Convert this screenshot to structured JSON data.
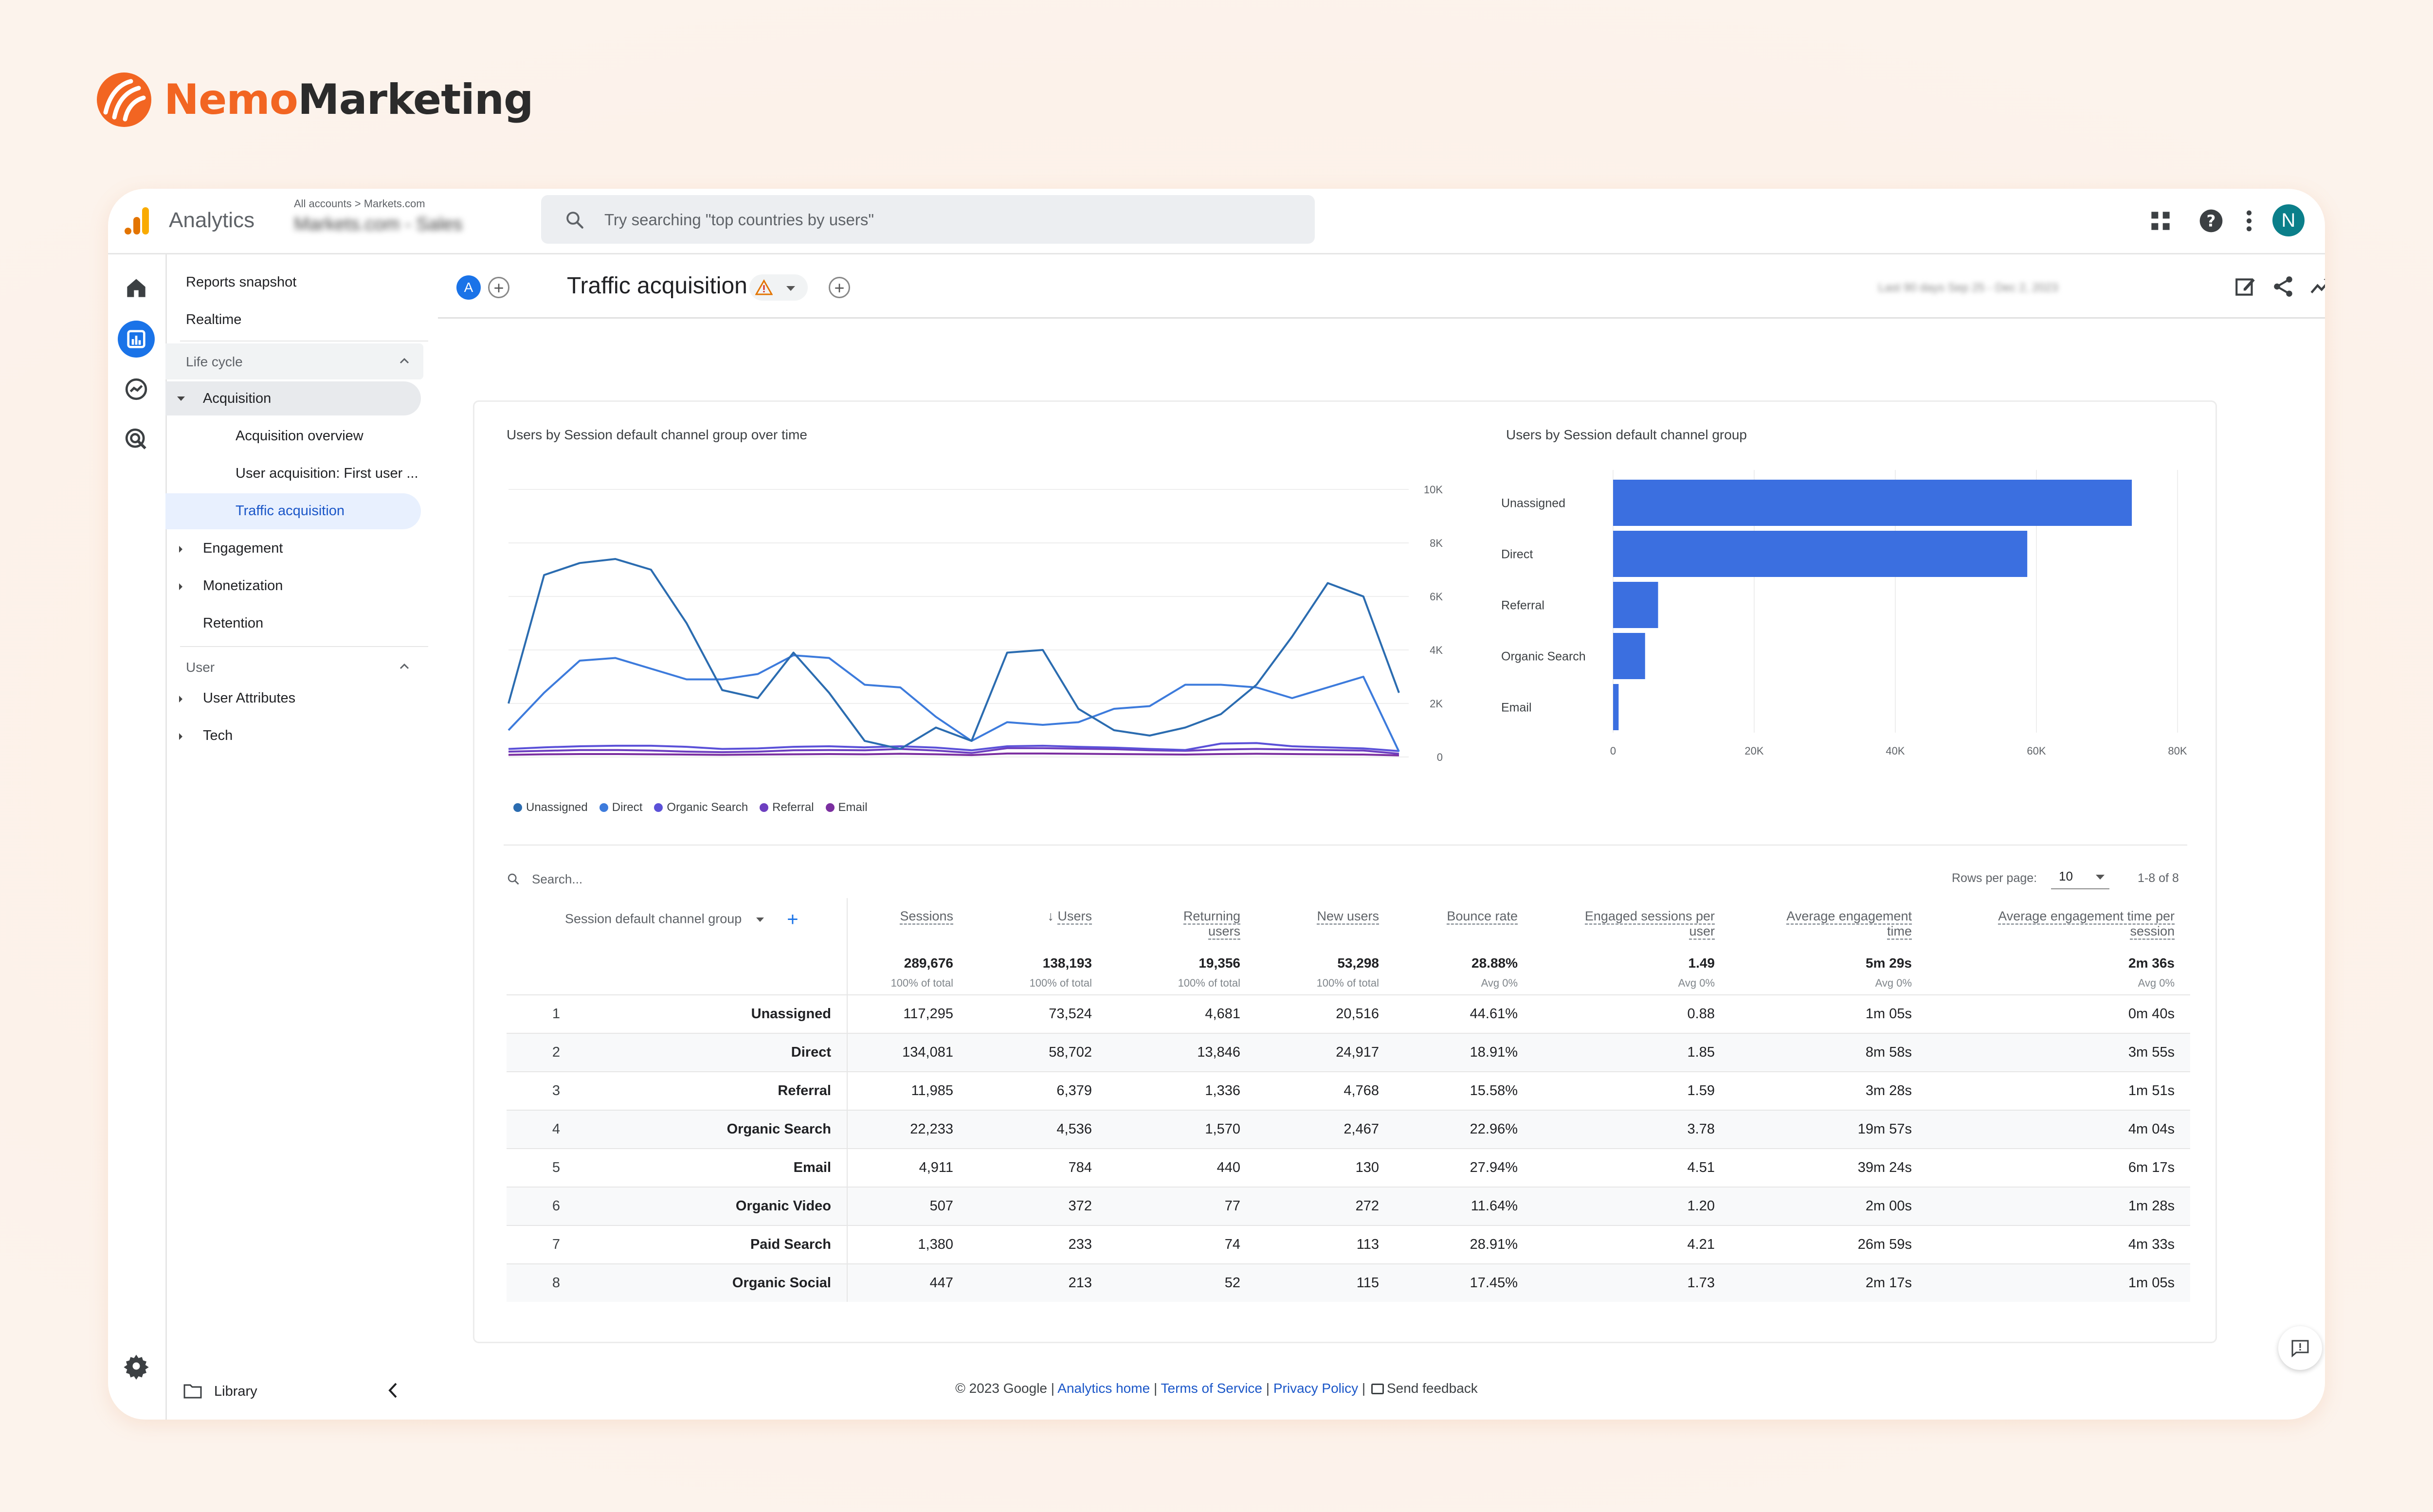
{
  "brand": {
    "name_part1": "Nemo",
    "name_part2": "Marketing",
    "color": "#f26522"
  },
  "topbar": {
    "app_title": "Analytics",
    "account_crumb": "All accounts > Markets.com",
    "account_name": "Markets.com - Sales",
    "search_placeholder": "Try searching \"top countries by users\"",
    "avatar_initial": "N",
    "icons": [
      "apps-grid-icon",
      "help-icon",
      "more-vert-icon"
    ]
  },
  "rail": {
    "icons": [
      "home-icon",
      "reports-icon",
      "explore-icon",
      "advertising-icon",
      "settings-icon"
    ],
    "active": "reports-icon"
  },
  "sidebar": {
    "reports_snapshot": "Reports snapshot",
    "realtime": "Realtime",
    "lifecycle_label": "Life cycle",
    "acquisition": "Acquisition",
    "acquisition_overview": "Acquisition overview",
    "user_acquisition": "User acquisition: First user ...",
    "traffic_acquisition": "Traffic acquisition",
    "engagement": "Engagement",
    "monetization": "Monetization",
    "retention": "Retention",
    "user_label": "User",
    "user_attributes": "User Attributes",
    "tech": "Tech",
    "library": "Library"
  },
  "report": {
    "comparison_badge": "A",
    "title": "Traffic acquisition",
    "date_range": "Last 90 days  Sep 25 - Dec 2, 2023",
    "accent": "#1a73e8"
  },
  "line_chart": {
    "title": "Users by Session default channel group over time",
    "y_ticks": [
      "10K",
      "8K",
      "6K",
      "4K",
      "2K",
      "0"
    ],
    "legend": [
      "Unassigned",
      "Direct",
      "Organic Search",
      "Referral",
      "Email"
    ]
  },
  "bar_chart": {
    "title": "Users by Session default channel group",
    "x_ticks": [
      "0",
      "20K",
      "40K",
      "60K",
      "80K"
    ]
  },
  "chart_data": [
    {
      "type": "line",
      "x": [
        1,
        2,
        3,
        4,
        5,
        6,
        7,
        8,
        9,
        10,
        11,
        12,
        13,
        14,
        15,
        16,
        17,
        18,
        19,
        20,
        21,
        22,
        23,
        24,
        25,
        26
      ],
      "ylim": [
        0,
        10000
      ],
      "y_ticks": [
        "10K",
        "8K",
        "6K",
        "4K",
        "2K",
        "0"
      ],
      "title": "Users by Session default channel group over time",
      "legend_position": "bottom",
      "series": [
        {
          "name": "Unassigned",
          "color": "#2b6cb0",
          "values": [
            2000,
            6800,
            7250,
            7400,
            7000,
            5000,
            2500,
            2200,
            3900,
            2400,
            600,
            300,
            1100,
            600,
            3900,
            4000,
            1800,
            1000,
            800,
            1100,
            1600,
            2700,
            4500,
            6500,
            6000,
            2400
          ]
        },
        {
          "name": "Direct",
          "color": "#3d7bdc",
          "values": [
            1000,
            2400,
            3600,
            3700,
            3300,
            2900,
            2900,
            3100,
            3800,
            3700,
            2700,
            2600,
            1500,
            600,
            1300,
            1200,
            1300,
            1800,
            1900,
            2700,
            2700,
            2600,
            2200,
            2600,
            3000,
            200
          ]
        },
        {
          "name": "Organic Search",
          "color": "#5b51d8",
          "values": [
            300,
            360,
            400,
            420,
            420,
            380,
            300,
            320,
            380,
            400,
            360,
            400,
            350,
            250,
            400,
            420,
            380,
            350,
            300,
            260,
            500,
            520,
            400,
            360,
            320,
            220
          ]
        },
        {
          "name": "Referral",
          "color": "#6d3fc0",
          "values": [
            200,
            230,
            260,
            260,
            240,
            200,
            180,
            200,
            250,
            260,
            250,
            300,
            240,
            150,
            330,
            330,
            310,
            290,
            250,
            230,
            280,
            300,
            280,
            260,
            240,
            120
          ]
        },
        {
          "name": "Email",
          "color": "#7b2fa0",
          "values": [
            80,
            100,
            110,
            110,
            100,
            90,
            80,
            90,
            100,
            110,
            100,
            120,
            100,
            70,
            130,
            130,
            120,
            110,
            100,
            90,
            110,
            120,
            110,
            100,
            90,
            60
          ]
        }
      ]
    },
    {
      "type": "bar",
      "orientation": "horizontal",
      "title": "Users by Session default channel group",
      "categories": [
        "Unassigned",
        "Direct",
        "Referral",
        "Organic Search",
        "Email"
      ],
      "values": [
        73524,
        58702,
        6379,
        4536,
        784
      ],
      "xlim": [
        0,
        80000
      ],
      "x_ticks": [
        "0",
        "20K",
        "40K",
        "60K",
        "80K"
      ],
      "color": "#3b6fe0"
    }
  ],
  "table": {
    "search_placeholder": "Search...",
    "rows_per_page_label": "Rows per page:",
    "rows_per_page": "10",
    "pagination": "1-8 of 8",
    "dimension_header": "Session default channel group",
    "headers": {
      "sessions": "Sessions",
      "users": "Users",
      "returning_l1": "Returning",
      "returning_l2": "users",
      "new_users": "New users",
      "bounce_rate": "Bounce rate",
      "eng_sess_l1": "Engaged sessions per",
      "eng_sess_l2": "user",
      "avg_eng_l1": "Average engagement",
      "avg_eng_l2": "time",
      "avg_sess_l1": "Average engagement time per",
      "avg_sess_l2": "session"
    },
    "totals": {
      "sessions": "289,676",
      "sessions_sub": "100% of total",
      "users": "138,193",
      "users_sub": "100% of total",
      "returning": "19,356",
      "returning_sub": "100% of total",
      "new_users": "53,298",
      "new_users_sub": "100% of total",
      "bounce": "28.88%",
      "bounce_sub": "Avg 0%",
      "eng_sess": "1.49",
      "eng_sess_sub": "Avg 0%",
      "avg_eng": "5m 29s",
      "avg_eng_sub": "Avg 0%",
      "avg_sess": "2m 36s",
      "avg_sess_sub": "Avg 0%"
    },
    "rows": [
      {
        "idx": "1",
        "channel": "Unassigned",
        "sessions": "117,295",
        "users": "73,524",
        "returning": "4,681",
        "new_users": "20,516",
        "bounce": "44.61%",
        "eng_sess": "0.88",
        "avg_eng": "1m 05s",
        "avg_sess": "0m 40s"
      },
      {
        "idx": "2",
        "channel": "Direct",
        "sessions": "134,081",
        "users": "58,702",
        "returning": "13,846",
        "new_users": "24,917",
        "bounce": "18.91%",
        "eng_sess": "1.85",
        "avg_eng": "8m 58s",
        "avg_sess": "3m 55s"
      },
      {
        "idx": "3",
        "channel": "Referral",
        "sessions": "11,985",
        "users": "6,379",
        "returning": "1,336",
        "new_users": "4,768",
        "bounce": "15.58%",
        "eng_sess": "1.59",
        "avg_eng": "3m 28s",
        "avg_sess": "1m 51s"
      },
      {
        "idx": "4",
        "channel": "Organic Search",
        "sessions": "22,233",
        "users": "4,536",
        "returning": "1,570",
        "new_users": "2,467",
        "bounce": "22.96%",
        "eng_sess": "3.78",
        "avg_eng": "19m 57s",
        "avg_sess": "4m 04s"
      },
      {
        "idx": "5",
        "channel": "Email",
        "sessions": "4,911",
        "users": "784",
        "returning": "440",
        "new_users": "130",
        "bounce": "27.94%",
        "eng_sess": "4.51",
        "avg_eng": "39m 24s",
        "avg_sess": "6m 17s"
      },
      {
        "idx": "6",
        "channel": "Organic Video",
        "sessions": "507",
        "users": "372",
        "returning": "77",
        "new_users": "272",
        "bounce": "11.64%",
        "eng_sess": "1.20",
        "avg_eng": "2m 00s",
        "avg_sess": "1m 28s"
      },
      {
        "idx": "7",
        "channel": "Paid Search",
        "sessions": "1,380",
        "users": "233",
        "returning": "74",
        "new_users": "113",
        "bounce": "28.91%",
        "eng_sess": "4.21",
        "avg_eng": "26m 59s",
        "avg_sess": "4m 33s"
      },
      {
        "idx": "8",
        "channel": "Organic Social",
        "sessions": "447",
        "users": "213",
        "returning": "52",
        "new_users": "115",
        "bounce": "17.45%",
        "eng_sess": "1.73",
        "avg_eng": "2m 17s",
        "avg_sess": "1m 05s"
      }
    ]
  },
  "footer": {
    "copyright": "© 2023 Google |",
    "analytics_home": "Analytics home",
    "sep": "|",
    "terms": "Terms of Service",
    "privacy": "Privacy Policy",
    "feedback": "Send feedback"
  }
}
